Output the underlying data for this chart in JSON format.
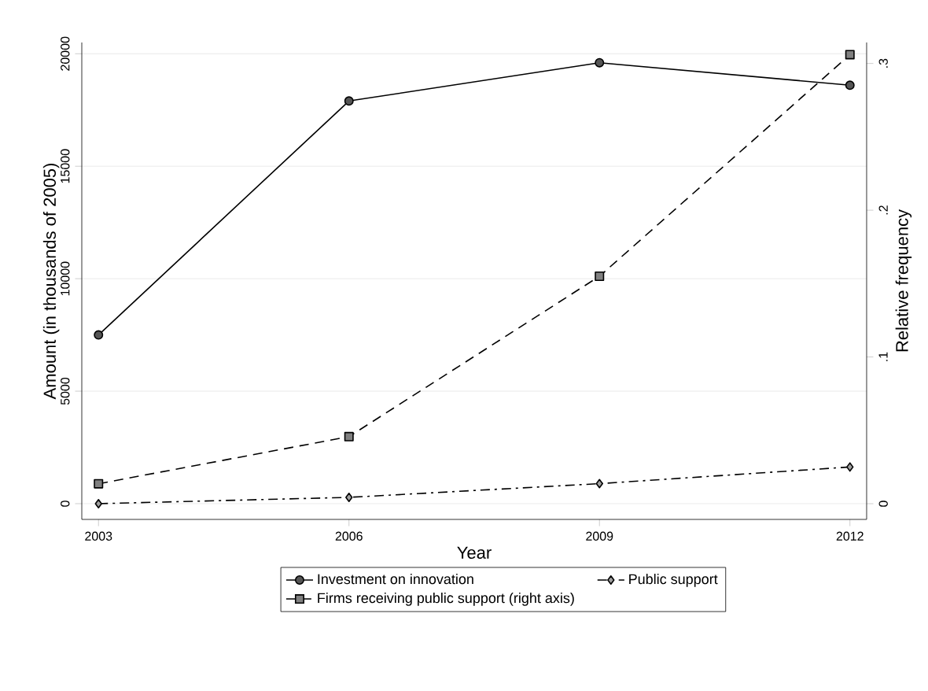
{
  "chart_data": {
    "type": "line",
    "xlabel": "Year",
    "ylabel": "Amount (in thousands of 2005)",
    "y2label": "Relative frequency",
    "x": [
      2003,
      2006,
      2009,
      2012
    ],
    "xlim": [
      2002.8,
      2012.2
    ],
    "xticks": [
      2003,
      2006,
      2009,
      2012
    ],
    "ylim": [
      -700,
      20500
    ],
    "yticks": [
      0,
      5000,
      10000,
      15000,
      20000
    ],
    "y2lim": [
      -0.0107,
      0.3143
    ],
    "y2ticks": [
      0,
      {
        "value": 0.1,
        "label": ".1"
      },
      {
        "value": 0.2,
        "label": ".2"
      },
      {
        "value": 0.3,
        "label": ".3"
      }
    ],
    "grid": "y",
    "legend": "bottom",
    "series": [
      {
        "name": "Investment on innovation",
        "color": "#555555",
        "marker": "circle",
        "line_style": "solid",
        "values": [
          7500,
          17900,
          19600,
          18600
        ]
      },
      {
        "name": "Public support",
        "color": "#a0a0a0",
        "marker": "diamond",
        "line_style": "dashdot",
        "values": [
          0,
          280,
          890,
          1630
        ]
      },
      {
        "name": "Firms receiving public support (right axis)",
        "color": "#808080",
        "marker": "square",
        "line_style": "dashed",
        "axis": "y2",
        "values": [
          0.0136,
          0.0457,
          0.155,
          0.306
        ]
      }
    ]
  }
}
